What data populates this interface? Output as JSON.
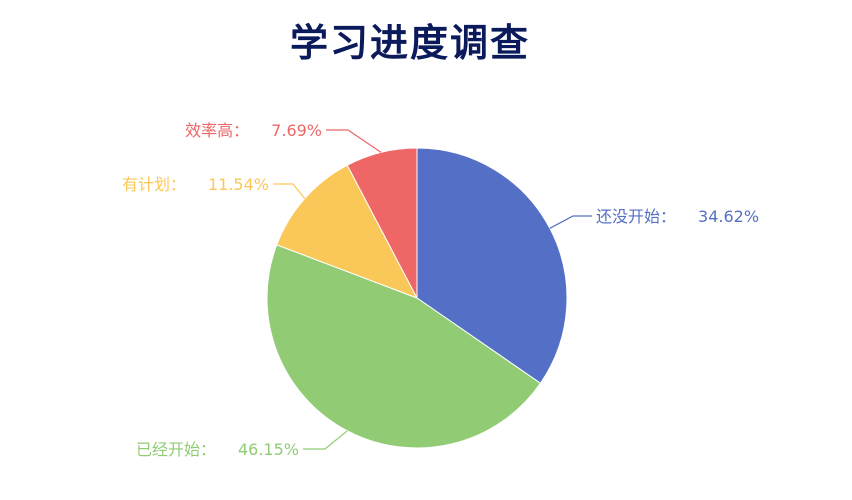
{
  "chart_data": {
    "type": "pie",
    "title": "学习进度调查",
    "slices": [
      {
        "name": "还没开始",
        "value": 34.62,
        "display": "34.62%",
        "color": "#5470c6"
      },
      {
        "name": "已经开始",
        "value": 46.15,
        "display": "46.15%",
        "color": "#91cc75"
      },
      {
        "name": "有计划",
        "value": 11.54,
        "display": "11.54%",
        "color": "#fac858"
      },
      {
        "name": "效率高",
        "value": 7.69,
        "display": "7.69%",
        "color": "#ee6666"
      }
    ]
  }
}
